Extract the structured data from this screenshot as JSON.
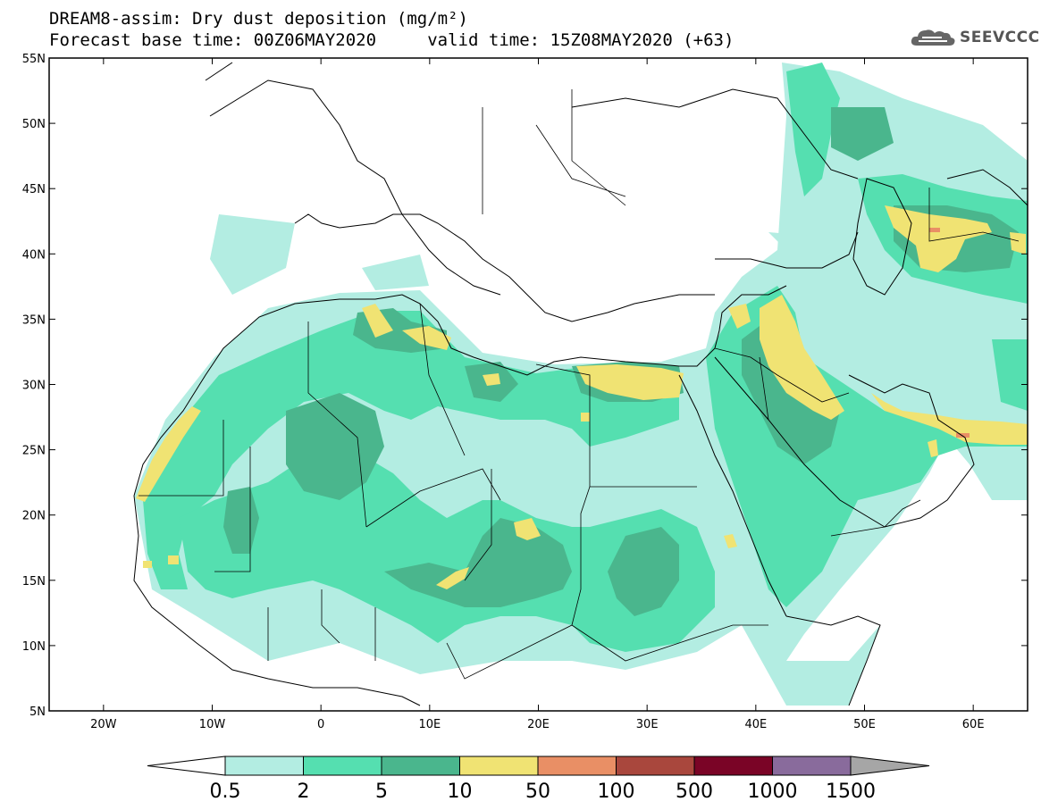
{
  "header": {
    "line1": "DREAM8-assim: Dry dust deposition (mg/m²)",
    "line2": "Forecast base time: 00Z06MAY2020     valid time: 15Z08MAY2020 (+63)"
  },
  "logo": {
    "text": "SEEVCCC",
    "icon": "cloud-icon"
  },
  "map": {
    "lon_range": [
      -25,
      65
    ],
    "lat_range": [
      5,
      55
    ],
    "lat_ticks": [
      {
        "v": 55,
        "label": "55N"
      },
      {
        "v": 50,
        "label": "50N"
      },
      {
        "v": 45,
        "label": "45N"
      },
      {
        "v": 40,
        "label": "40N"
      },
      {
        "v": 35,
        "label": "35N"
      },
      {
        "v": 30,
        "label": "30N"
      },
      {
        "v": 25,
        "label": "25N"
      },
      {
        "v": 20,
        "label": "20N"
      },
      {
        "v": 15,
        "label": "15N"
      },
      {
        "v": 10,
        "label": "10N"
      },
      {
        "v": 5,
        "label": "5N"
      }
    ],
    "lon_ticks": [
      {
        "v": -20,
        "label": "20W"
      },
      {
        "v": -10,
        "label": "10W"
      },
      {
        "v": 0,
        "label": "0"
      },
      {
        "v": 10,
        "label": "10E"
      },
      {
        "v": 20,
        "label": "20E"
      },
      {
        "v": 30,
        "label": "30E"
      },
      {
        "v": 40,
        "label": "40E"
      },
      {
        "v": 50,
        "label": "50E"
      },
      {
        "v": 60,
        "label": "60E"
      }
    ]
  },
  "colorbar": {
    "labels": [
      "0.5",
      "2",
      "5",
      "10",
      "50",
      "100",
      "500",
      "1000",
      "1500"
    ],
    "colors": [
      "#b3ede2",
      "#55dfb0",
      "#4ab68d",
      "#f0e373",
      "#e98f65",
      "#a9473d",
      "#7a0426",
      "#896b9c"
    ],
    "under_color": "#ffffff",
    "over_color": "#a6a6a6"
  },
  "colors": {
    "level1": "#b3ede2",
    "level2": "#55dfb0",
    "level3": "#4ab68d",
    "level4": "#f0e373",
    "level5": "#e98f65"
  }
}
